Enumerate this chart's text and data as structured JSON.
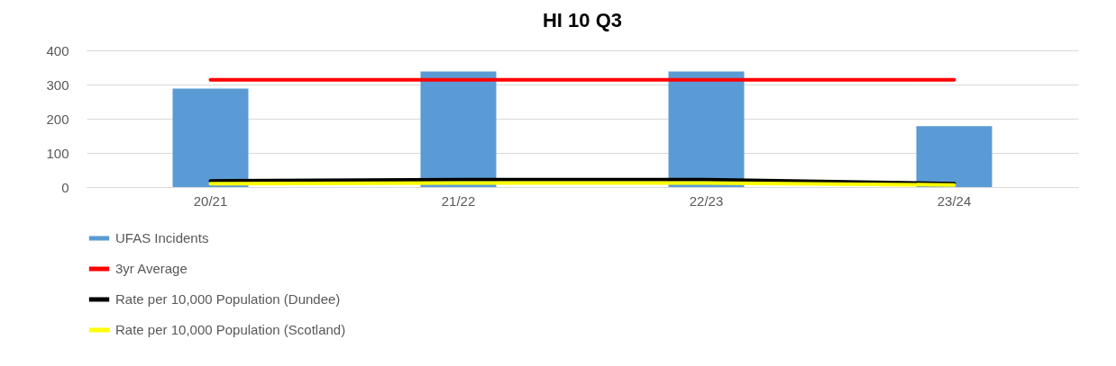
{
  "chart_data": {
    "type": "bar",
    "title": "HI 10 Q3",
    "categories": [
      "20/21",
      "21/22",
      "22/23",
      "23/24"
    ],
    "series": [
      {
        "name": "UFAS Incidents",
        "color": "#5b9bd5",
        "values": [
          288,
          338,
          338,
          178
        ]
      },
      {
        "name": "3yr Average",
        "type": "line",
        "color": "#ff0000",
        "values": [
          314,
          314,
          314,
          314
        ]
      },
      {
        "name": "Rate per 10,000 Population (Dundee)",
        "type": "line",
        "color": "#000000",
        "values": [
          18,
          22,
          22,
          10
        ]
      },
      {
        "name": "Rate per 10,000 Population (Scotland)",
        "type": "line",
        "color": "#ffff00",
        "values": [
          10,
          12,
          12,
          6
        ]
      }
    ],
    "ylim": [
      0,
      400
    ],
    "yticks": [
      0,
      100,
      200,
      300,
      400
    ],
    "grid": "y",
    "legend": "bottom",
    "marker": "none",
    "line_style": "solid"
  }
}
